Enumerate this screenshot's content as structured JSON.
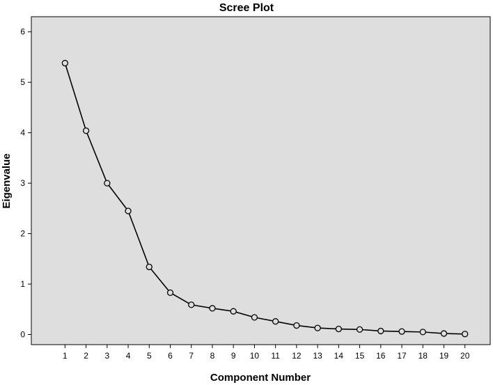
{
  "chart_data": {
    "type": "line",
    "title": "Scree Plot",
    "xlabel": "Component Number",
    "ylabel": "Eigenvalue",
    "x": [
      1,
      2,
      3,
      4,
      5,
      6,
      7,
      8,
      9,
      10,
      11,
      12,
      13,
      14,
      15,
      16,
      17,
      18,
      19,
      20
    ],
    "x_tick_labels": [
      "1",
      "2",
      "3",
      "4",
      "5",
      "6",
      "7",
      "8",
      "9",
      "10",
      "11",
      "12",
      "13",
      "14",
      "15",
      "16",
      "17",
      "18",
      "19",
      "20"
    ],
    "y_ticks": [
      "0",
      "1",
      "2",
      "3",
      "4",
      "5",
      "6"
    ],
    "series": [
      {
        "values": [
          5.38,
          4.04,
          3.0,
          2.45,
          1.34,
          0.83,
          0.59,
          0.52,
          0.46,
          0.34,
          0.26,
          0.18,
          0.13,
          0.11,
          0.1,
          0.07,
          0.06,
          0.05,
          0.02,
          0.01
        ]
      }
    ],
    "xlim": [
      -0.6,
      21.2
    ],
    "ylim": [
      -0.2,
      6.3
    ],
    "grid": false,
    "colors": {
      "plot_background": "#dedede",
      "line": "#000000",
      "marker_fill": "#dedede"
    }
  }
}
